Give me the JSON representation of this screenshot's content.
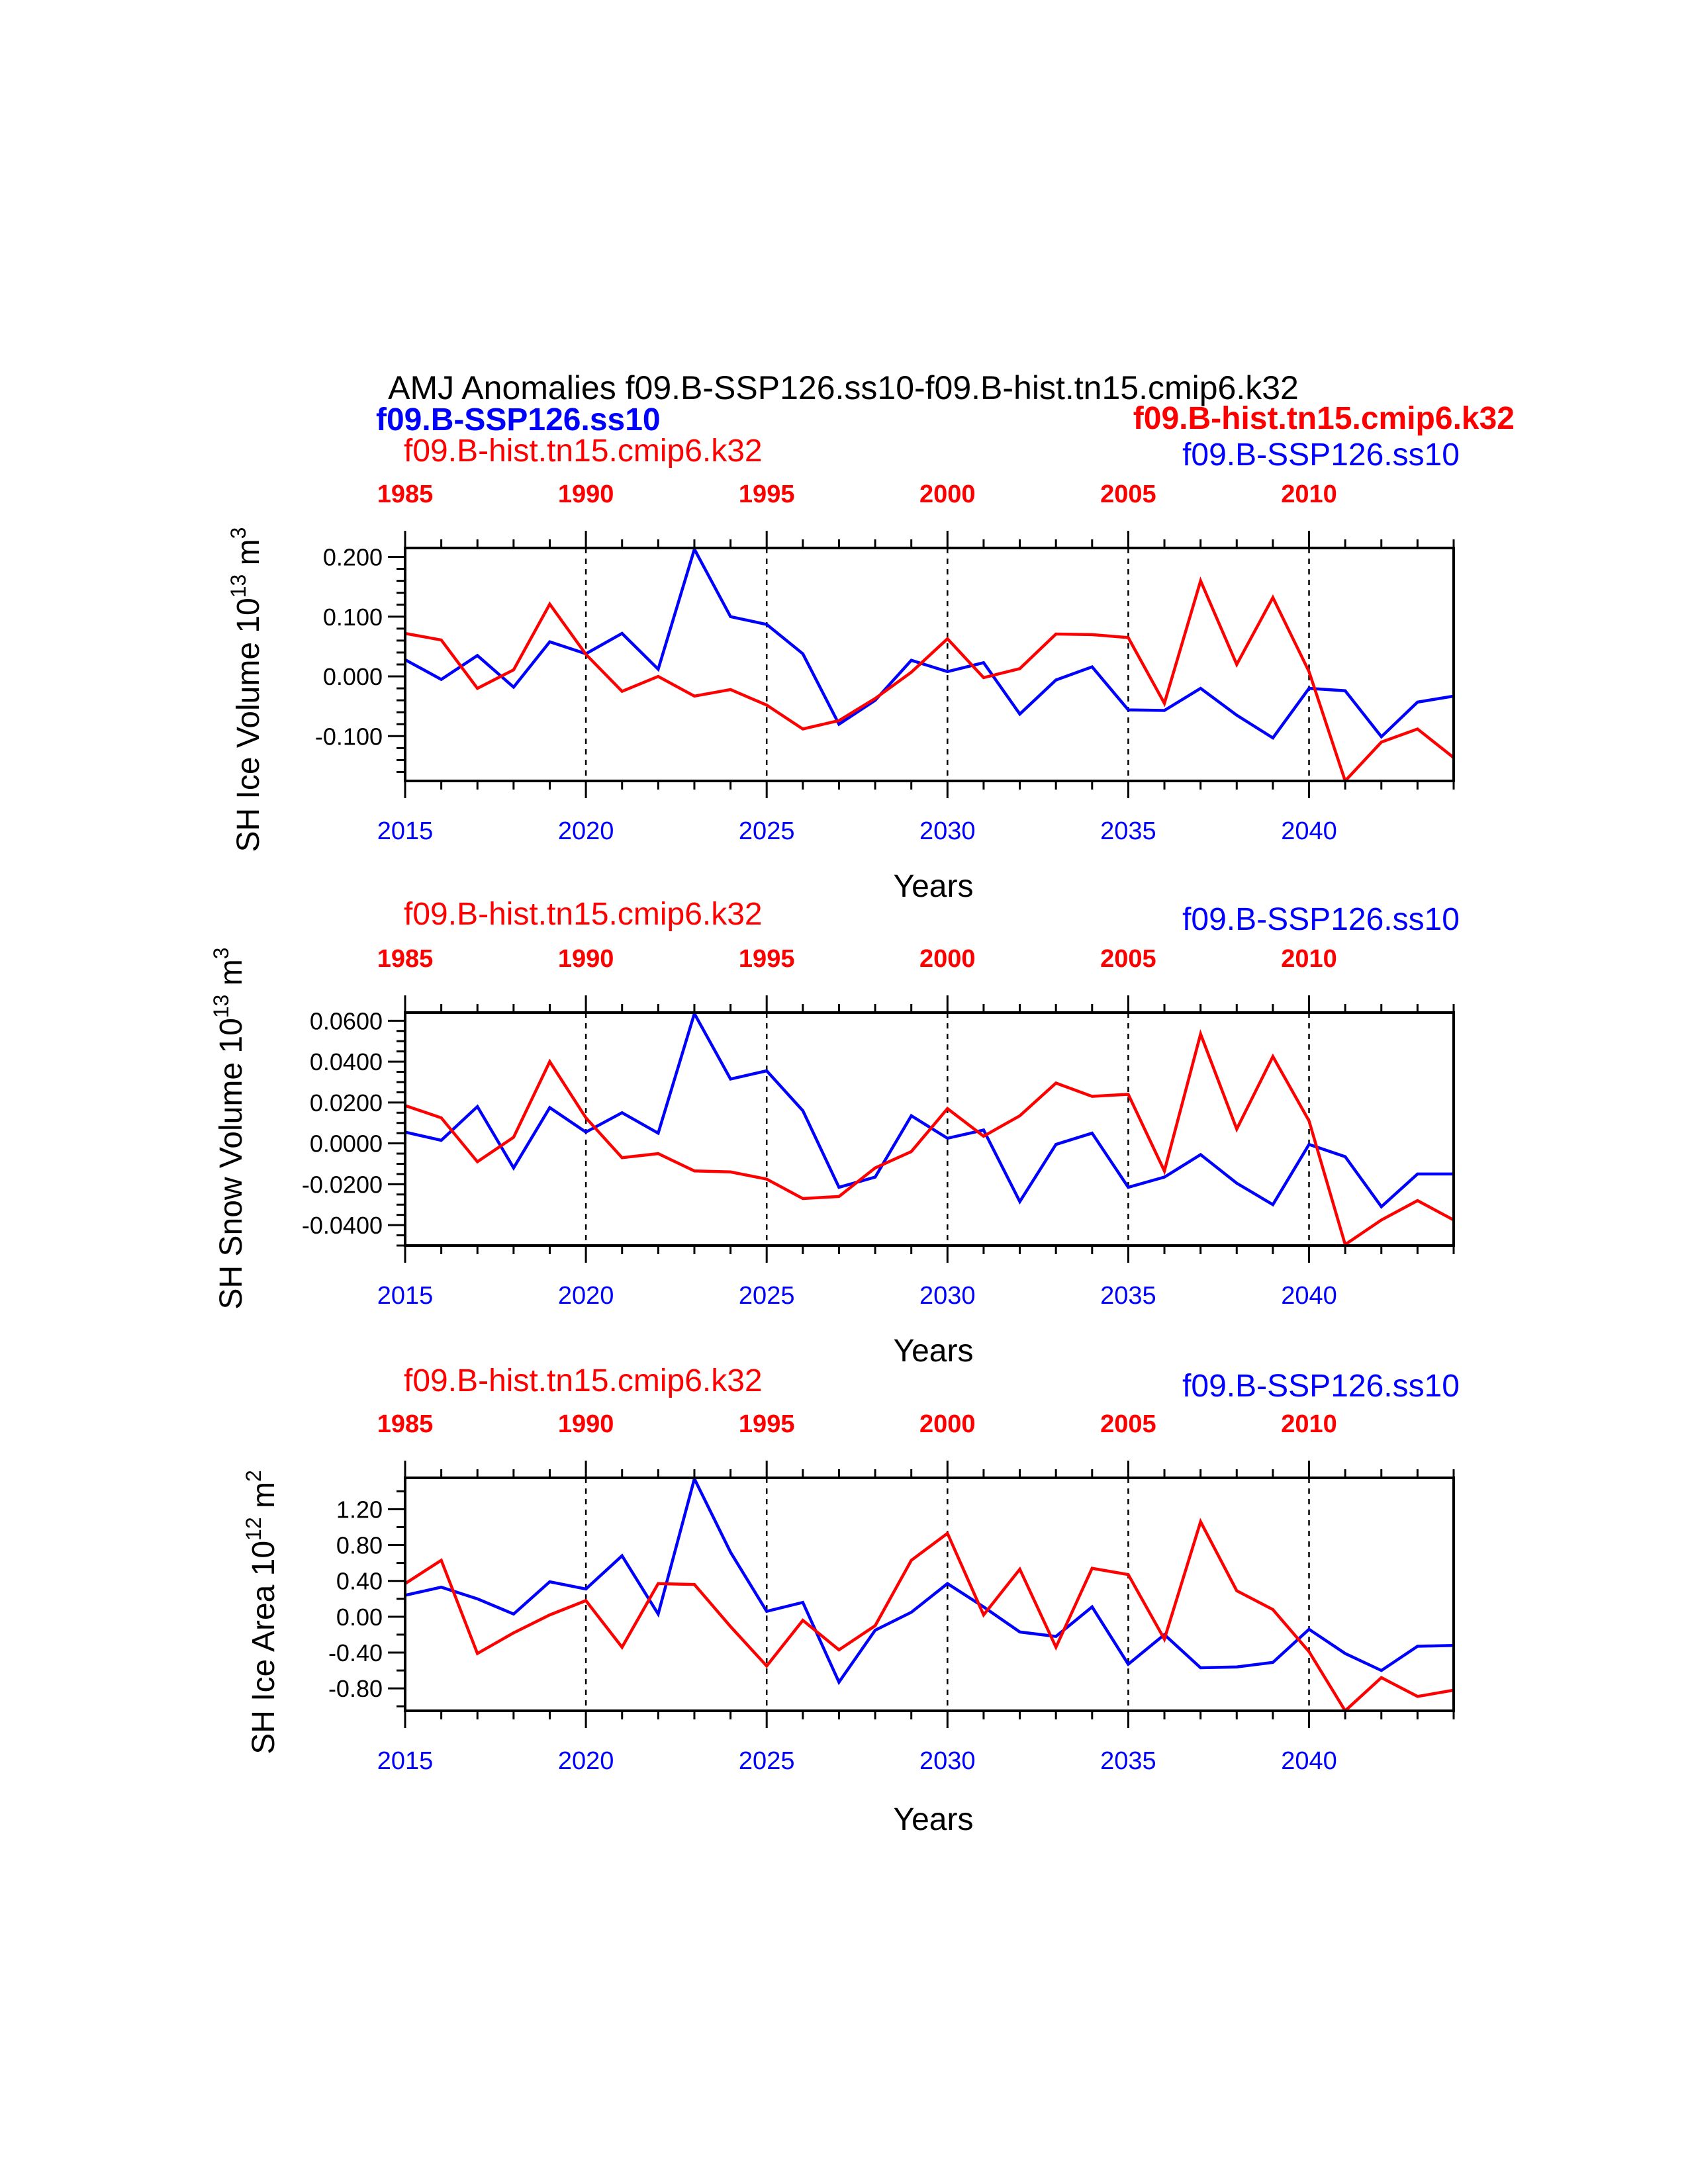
{
  "figure": {
    "title": "AMJ Anomalies f09.B-SSP126.ss10-f09.B-hist.tn15.cmip6.k32",
    "header_left_bold": "f09.B-SSP126.ss10",
    "header_right_bold": "f09.B-hist.tn15.cmip6.k32"
  },
  "colors": {
    "ssp": "#0000ff",
    "hist": "#ff0000",
    "axis": "#000000"
  },
  "chart_data": [
    {
      "type": "line",
      "ylabel": "SH Ice Volume 10",
      "ylabel_sup": "13",
      "ylabel_unit": " m",
      "ylabel_unit_sup": "3",
      "xlabel": "Years",
      "legend_left": "f09.B-hist.tn15.cmip6.k32",
      "legend_right": "f09.B-SSP126.ss10",
      "xlim": [
        2015,
        2044
      ],
      "ylim": [
        -0.175,
        0.215
      ],
      "yticks_major": [
        -0.1,
        0.0,
        0.1,
        0.2
      ],
      "yticks_minor_step": 0.02,
      "ytick_labels": [
        "-0.100",
        "0.000",
        "0.100",
        "0.200"
      ],
      "xticks_bottom": [
        2015,
        2020,
        2025,
        2030,
        2035,
        2040
      ],
      "xtick_bottom_labels": [
        "2015",
        "2020",
        "2025",
        "2030",
        "2035",
        "2040"
      ],
      "xtick_top_labels": [
        "1985",
        "1990",
        "1995",
        "2000",
        "2005",
        "2010"
      ],
      "grid_x": [
        2020,
        2025,
        2030,
        2035,
        2040
      ],
      "x": [
        2015,
        2016,
        2017,
        2018,
        2019,
        2020,
        2021,
        2022,
        2023,
        2024,
        2025,
        2026,
        2027,
        2028,
        2029,
        2030,
        2031,
        2032,
        2033,
        2034,
        2035,
        2036,
        2037,
        2038,
        2039,
        2040,
        2041,
        2042,
        2043,
        2044
      ],
      "series": [
        {
          "name": "f09.B-SSP126.ss10",
          "color": "#0000ff",
          "values": [
            0.028,
            -0.005,
            0.035,
            -0.018,
            0.058,
            0.038,
            0.072,
            0.012,
            0.213,
            0.1,
            0.087,
            0.038,
            -0.08,
            -0.04,
            0.027,
            0.008,
            0.023,
            -0.063,
            -0.006,
            0.016,
            -0.056,
            -0.057,
            -0.02,
            -0.065,
            -0.103,
            -0.02,
            -0.024,
            -0.101,
            -0.043,
            -0.033
          ]
        },
        {
          "name": "f09.B-hist.tn15.cmip6.k32",
          "color": "#ff0000",
          "values": [
            0.072,
            0.061,
            -0.02,
            0.011,
            0.121,
            0.037,
            -0.025,
            0.0,
            -0.033,
            -0.022,
            -0.048,
            -0.088,
            -0.074,
            -0.037,
            0.007,
            0.063,
            -0.002,
            0.013,
            0.071,
            0.07,
            0.065,
            -0.045,
            0.16,
            0.02,
            0.132,
            0.008,
            -0.175,
            -0.11,
            -0.088,
            -0.136
          ]
        }
      ]
    },
    {
      "type": "line",
      "ylabel": "SH Snow Volume 10",
      "ylabel_sup": "13",
      "ylabel_unit": " m",
      "ylabel_unit_sup": "3",
      "xlabel": "Years",
      "legend_left": "f09.B-hist.tn15.cmip6.k32",
      "legend_right": "f09.B-SSP126.ss10",
      "xlim": [
        2015,
        2044
      ],
      "ylim": [
        -0.05,
        0.064
      ],
      "yticks_major": [
        -0.04,
        -0.02,
        0.0,
        0.02,
        0.04,
        0.06
      ],
      "yticks_minor_step": 0.005,
      "ytick_labels": [
        "-0.0400",
        "-0.0200",
        "0.0000",
        "0.0200",
        "0.0400",
        "0.0600"
      ],
      "xticks_bottom": [
        2015,
        2020,
        2025,
        2030,
        2035,
        2040
      ],
      "xtick_bottom_labels": [
        "2015",
        "2020",
        "2025",
        "2030",
        "2035",
        "2040"
      ],
      "xtick_top_labels": [
        "1985",
        "1990",
        "1995",
        "2000",
        "2005",
        "2010"
      ],
      "grid_x": [
        2020,
        2025,
        2030,
        2035,
        2040
      ],
      "x": [
        2015,
        2016,
        2017,
        2018,
        2019,
        2020,
        2021,
        2022,
        2023,
        2024,
        2025,
        2026,
        2027,
        2028,
        2029,
        2030,
        2031,
        2032,
        2033,
        2034,
        2035,
        2036,
        2037,
        2038,
        2039,
        2040,
        2041,
        2042,
        2043,
        2044
      ],
      "series": [
        {
          "name": "f09.B-SSP126.ss10",
          "color": "#0000ff",
          "values": [
            0.0055,
            0.0015,
            0.018,
            -0.012,
            0.0175,
            0.0055,
            0.015,
            0.005,
            0.0635,
            0.0315,
            0.0355,
            0.016,
            -0.0215,
            -0.0165,
            0.0135,
            0.0025,
            0.0065,
            -0.0285,
            -0.0005,
            0.005,
            -0.0215,
            -0.0165,
            -0.0055,
            -0.0195,
            -0.03,
            -0.0005,
            -0.0065,
            -0.031,
            -0.015,
            -0.015
          ]
        },
        {
          "name": "f09.B-hist.tn15.cmip6.k32",
          "color": "#ff0000",
          "values": [
            0.0185,
            0.0125,
            -0.009,
            0.003,
            0.04,
            0.0125,
            -0.007,
            -0.005,
            -0.0135,
            -0.014,
            -0.0175,
            -0.027,
            -0.026,
            -0.012,
            -0.004,
            0.017,
            0.0035,
            0.0135,
            0.0295,
            0.023,
            0.024,
            -0.0135,
            0.0535,
            0.007,
            0.0425,
            0.011,
            -0.0495,
            -0.0375,
            -0.028,
            -0.0375
          ]
        }
      ]
    },
    {
      "type": "line",
      "ylabel": "SH Ice Area 10",
      "ylabel_sup": "12",
      "ylabel_unit": " m",
      "ylabel_unit_sup": "2",
      "xlabel": "Years",
      "legend_left": "f09.B-hist.tn15.cmip6.k32",
      "legend_right": "f09.B-SSP126.ss10",
      "xlim": [
        2015,
        2044
      ],
      "ylim": [
        -1.05,
        1.55
      ],
      "yticks_major": [
        -0.8,
        -0.4,
        0.0,
        0.4,
        0.8,
        1.2
      ],
      "yticks_minor_step": 0.2,
      "ytick_labels": [
        "-0.80",
        "-0.40",
        "0.00",
        "0.40",
        "0.80",
        "1.20"
      ],
      "xticks_bottom": [
        2015,
        2020,
        2025,
        2030,
        2035,
        2040
      ],
      "xtick_bottom_labels": [
        "2015",
        "2020",
        "2025",
        "2030",
        "2035",
        "2040"
      ],
      "xtick_top_labels": [
        "1985",
        "1990",
        "1995",
        "2000",
        "2005",
        "2010"
      ],
      "grid_x": [
        2020,
        2025,
        2030,
        2035,
        2040
      ],
      "x": [
        2015,
        2016,
        2017,
        2018,
        2019,
        2020,
        2021,
        2022,
        2023,
        2024,
        2025,
        2026,
        2027,
        2028,
        2029,
        2030,
        2031,
        2032,
        2033,
        2034,
        2035,
        2036,
        2037,
        2038,
        2039,
        2040,
        2041,
        2042,
        2043,
        2044
      ],
      "series": [
        {
          "name": "f09.B-SSP126.ss10",
          "color": "#0000ff",
          "values": [
            0.24,
            0.33,
            0.2,
            0.03,
            0.39,
            0.31,
            0.68,
            0.03,
            1.54,
            0.72,
            0.06,
            0.16,
            -0.73,
            -0.15,
            0.05,
            0.37,
            0.11,
            -0.17,
            -0.22,
            0.11,
            -0.53,
            -0.2,
            -0.57,
            -0.56,
            -0.51,
            -0.14,
            -0.41,
            -0.6,
            -0.33,
            -0.32
          ]
        },
        {
          "name": "f09.B-hist.tn15.cmip6.k32",
          "color": "#ff0000",
          "values": [
            0.37,
            0.63,
            -0.41,
            -0.18,
            0.02,
            0.18,
            -0.34,
            0.37,
            0.36,
            -0.11,
            -0.55,
            -0.04,
            -0.37,
            -0.1,
            0.63,
            0.93,
            0.02,
            0.53,
            -0.34,
            0.54,
            0.47,
            -0.25,
            1.06,
            0.29,
            0.08,
            -0.39,
            -1.05,
            -0.68,
            -0.89,
            -0.82
          ]
        }
      ]
    }
  ]
}
